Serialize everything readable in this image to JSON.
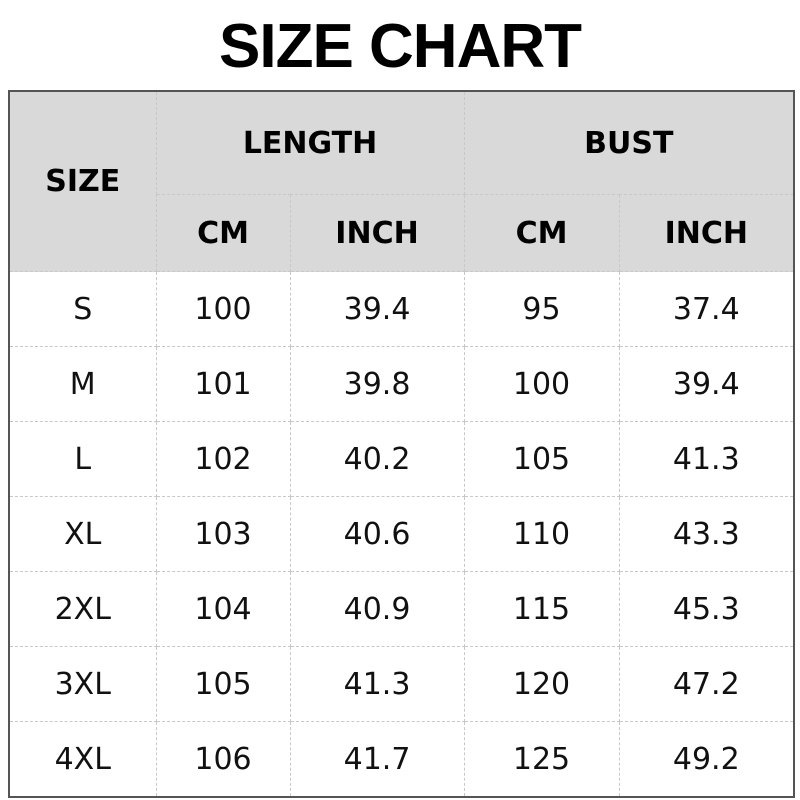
{
  "title": "SIZE CHART",
  "header": {
    "size": "SIZE",
    "length": "LENGTH",
    "bust": "BUST",
    "length_cm": "CM",
    "length_inch": "INCH",
    "bust_cm": "CM",
    "bust_inch": "INCH"
  },
  "rows": [
    [
      "S",
      "100",
      "39.4",
      "95",
      "37.4"
    ],
    [
      "M",
      "101",
      "39.8",
      "100",
      "39.4"
    ],
    [
      "L",
      "102",
      "40.2",
      "105",
      "41.3"
    ],
    [
      "XL",
      "103",
      "40.6",
      "110",
      "43.3"
    ],
    [
      "2XL",
      "104",
      "40.9",
      "115",
      "45.3"
    ],
    [
      "3XL",
      "105",
      "41.3",
      "120",
      "47.2"
    ],
    [
      "4XL",
      "106",
      "41.7",
      "125",
      "49.2"
    ]
  ],
  "colors": {
    "header_bg": "#d9d9d9",
    "border": "#555555"
  }
}
